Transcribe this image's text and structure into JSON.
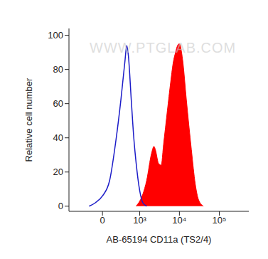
{
  "chart_data": {
    "type": "histogram",
    "x_label": "AB-65194 CD11a (TS2/4)",
    "y_label": "Relative cell number",
    "annotations": [
      "WWW.PTGLAB.COM"
    ],
    "xlim": [
      -800,
      550000
    ],
    "xticks": [
      0,
      {
        "value": 1000,
        "label": "10³"
      },
      {
        "value": 10000,
        "label": "10⁴"
      },
      {
        "value": 100000,
        "label": "10⁵"
      }
    ],
    "ylim": [
      -3,
      104
    ],
    "yticks": [
      0,
      20,
      40,
      60,
      80,
      100
    ],
    "grid": false,
    "series": [
      {
        "type": "area",
        "color": "#ff0000",
        "x": [
          800,
          1000,
          1200,
          1500,
          2000,
          2300,
          2500,
          3000,
          3500,
          4000,
          5000,
          6000,
          7000,
          8000,
          9000,
          10000,
          12000,
          15000,
          20000,
          25000,
          30000,
          40000
        ],
        "values": [
          0,
          3,
          7,
          15,
          31,
          35,
          33,
          25,
          24,
          36,
          56,
          72,
          84,
          90,
          94,
          95,
          86,
          62,
          33,
          13,
          4,
          0
        ]
      },
      {
        "type": "line",
        "color": "#1c1cc8",
        "x": [
          -200,
          -100,
          0,
          100,
          200,
          300,
          400,
          450,
          500,
          600,
          700,
          800,
          1000,
          1200,
          1500
        ],
        "values": [
          0,
          2,
          6,
          15,
          38,
          62,
          85,
          94,
          88,
          62,
          40,
          26,
          9,
          2,
          0
        ]
      }
    ]
  }
}
